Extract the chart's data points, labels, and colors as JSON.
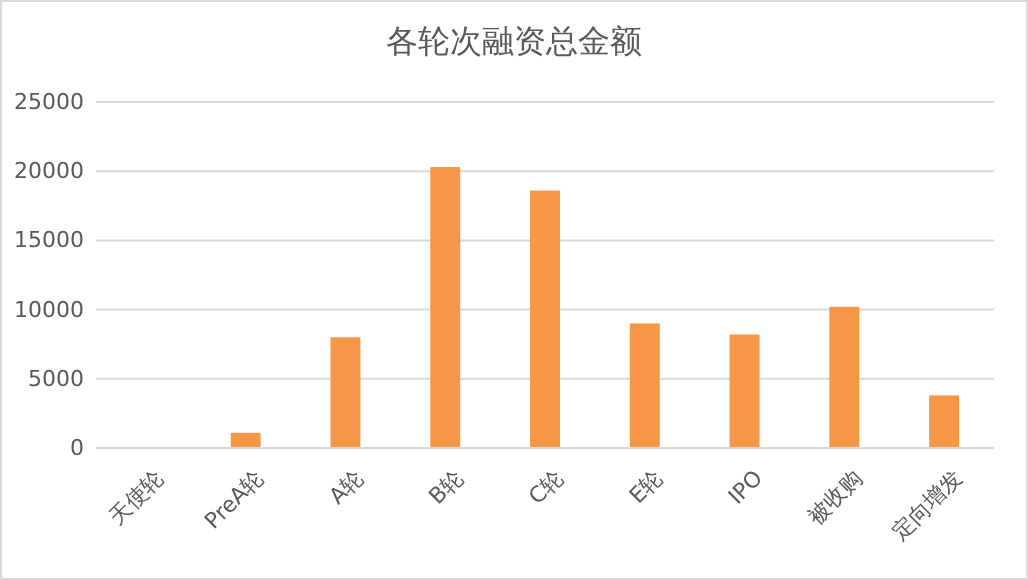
{
  "chart_data": {
    "type": "bar",
    "title": "各轮次融资总金额",
    "categories": [
      "天使轮",
      "PreA轮",
      "A轮",
      "B轮",
      "C轮",
      "E轮",
      "IPO",
      "被收购",
      "定向增发"
    ],
    "values": [
      0,
      1100,
      8000,
      20300,
      18600,
      9000,
      8200,
      10200,
      3800
    ],
    "color": "#f59746",
    "ylim": [
      0,
      25000
    ],
    "yticks": [
      0,
      5000,
      10000,
      15000,
      20000,
      25000
    ],
    "grid": "y"
  }
}
